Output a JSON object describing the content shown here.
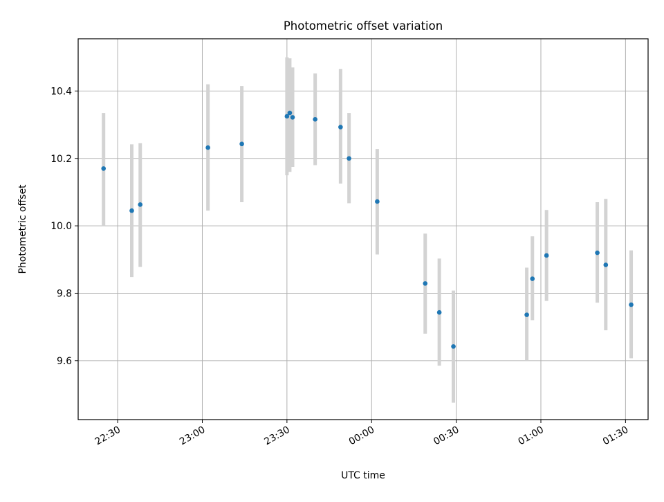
{
  "chart_data": {
    "type": "scatter",
    "title": "Photometric offset variation",
    "xlabel": "UTC time",
    "ylabel": "Photometric offset",
    "xlim": [
      "22:16",
      "01:38"
    ],
    "ylim": [
      9.425,
      10.555
    ],
    "grid": true,
    "x_ticks": [
      "22:30",
      "23:00",
      "23:30",
      "00:00",
      "00:30",
      "01:00",
      "01:30"
    ],
    "y_ticks": [
      "9.6",
      "9.8",
      "10.0",
      "10.2",
      "10.4"
    ],
    "marker_color": "#1f77b4",
    "errorbar_color": "#d3d3d3",
    "points": [
      {
        "x": "22:25",
        "y": 10.17,
        "yerr_low": 10.0,
        "yerr_high": 10.335
      },
      {
        "x": "22:35",
        "y": 10.045,
        "yerr_low": 9.848,
        "yerr_high": 10.242
      },
      {
        "x": "22:38",
        "y": 10.063,
        "yerr_low": 9.878,
        "yerr_high": 10.245
      },
      {
        "x": "23:02",
        "y": 10.232,
        "yerr_low": 10.045,
        "yerr_high": 10.42
      },
      {
        "x": "23:14",
        "y": 10.243,
        "yerr_low": 10.07,
        "yerr_high": 10.415
      },
      {
        "x": "23:30",
        "y": 10.325,
        "yerr_low": 10.15,
        "yerr_high": 10.5
      },
      {
        "x": "23:31",
        "y": 10.335,
        "yerr_low": 10.16,
        "yerr_high": 10.497
      },
      {
        "x": "23:32",
        "y": 10.322,
        "yerr_low": 10.175,
        "yerr_high": 10.47
      },
      {
        "x": "23:40",
        "y": 10.316,
        "yerr_low": 10.18,
        "yerr_high": 10.452
      },
      {
        "x": "23:49",
        "y": 10.293,
        "yerr_low": 10.125,
        "yerr_high": 10.465
      },
      {
        "x": "23:52",
        "y": 10.2,
        "yerr_low": 10.067,
        "yerr_high": 10.335
      },
      {
        "x": "00:02",
        "y": 10.072,
        "yerr_low": 9.915,
        "yerr_high": 10.228
      },
      {
        "x": "00:19",
        "y": 9.829,
        "yerr_low": 9.68,
        "yerr_high": 9.977
      },
      {
        "x": "00:24",
        "y": 9.743,
        "yerr_low": 9.585,
        "yerr_high": 9.903
      },
      {
        "x": "00:29",
        "y": 9.642,
        "yerr_low": 9.475,
        "yerr_high": 9.808
      },
      {
        "x": "00:55",
        "y": 9.736,
        "yerr_low": 9.6,
        "yerr_high": 9.876
      },
      {
        "x": "00:57",
        "y": 9.843,
        "yerr_low": 9.72,
        "yerr_high": 9.969
      },
      {
        "x": "01:02",
        "y": 9.912,
        "yerr_low": 9.777,
        "yerr_high": 10.047
      },
      {
        "x": "01:20",
        "y": 9.92,
        "yerr_low": 9.772,
        "yerr_high": 10.07
      },
      {
        "x": "01:23",
        "y": 9.884,
        "yerr_low": 9.69,
        "yerr_high": 10.08
      },
      {
        "x": "01:32",
        "y": 9.766,
        "yerr_low": 9.607,
        "yerr_high": 9.927
      }
    ]
  }
}
